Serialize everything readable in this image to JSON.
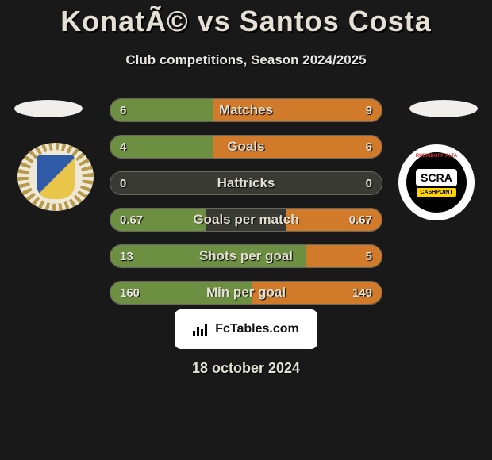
{
  "heading": "KonatÃ© vs Santos Costa",
  "subheading": "Club competitions, Season 2024/2025",
  "date": "18 october 2024",
  "fctables_label": "FcTables.com",
  "colors": {
    "left_fill": "#6d8f41",
    "right_fill": "#d07a2a",
    "row_bg": "#3a3a35",
    "row_border": "#69665b"
  },
  "left_crest": {
    "name": "club-a",
    "colors": [
      "#2f5aa7",
      "#e9c64a",
      "#b79a4c"
    ]
  },
  "right_crest": {
    "name": "SCRA",
    "arc_text": "RHEINDORF ALTA",
    "sponsor": "CASHPOINT",
    "colors": [
      "#000000",
      "#ffffff",
      "#ffd400"
    ]
  },
  "rows": [
    {
      "label": "Matches",
      "left": "6",
      "right": "9",
      "left_pct": 38,
      "right_pct": 62
    },
    {
      "label": "Goals",
      "left": "4",
      "right": "6",
      "left_pct": 38,
      "right_pct": 62
    },
    {
      "label": "Hattricks",
      "left": "0",
      "right": "0",
      "left_pct": 0,
      "right_pct": 0
    },
    {
      "label": "Goals per match",
      "left": "0.67",
      "right": "0.67",
      "left_pct": 35,
      "right_pct": 35
    },
    {
      "label": "Shots per goal",
      "left": "13",
      "right": "5",
      "left_pct": 72,
      "right_pct": 28
    },
    {
      "label": "Min per goal",
      "left": "160",
      "right": "149",
      "left_pct": 52,
      "right_pct": 48
    }
  ]
}
